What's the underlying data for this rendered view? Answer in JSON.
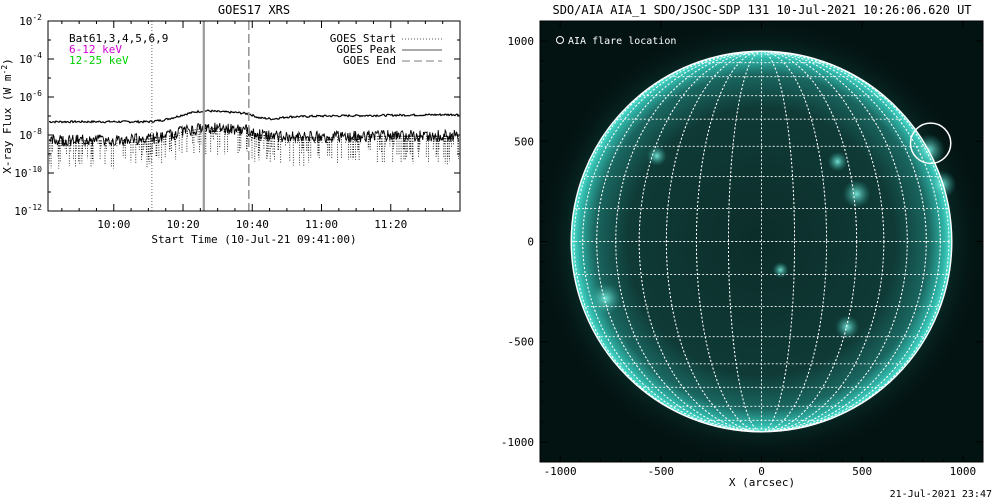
{
  "footer_timestamp": "21-Jul-2021 23:47",
  "chart_data": [
    {
      "type": "line",
      "title": "GOES17 XRS",
      "xlabel": "Start Time (10-Jul-21 09:41:00)",
      "ylabel": "X-ray Flux (W m",
      "ylabel_sup": "-2",
      "ylabel_end": ")",
      "y_scale": "log",
      "ylim": [
        1e-12,
        0.01
      ],
      "y_ticks": [
        {
          "value": 0.01,
          "base": "10",
          "exp": "-2"
        },
        {
          "value": 0.0001,
          "base": "10",
          "exp": "-4"
        },
        {
          "value": 1e-06,
          "base": "10",
          "exp": "-6"
        },
        {
          "value": 1e-08,
          "base": "10",
          "exp": "-8"
        },
        {
          "value": 1e-10,
          "base": "10",
          "exp": "-10"
        },
        {
          "value": 1e-12,
          "base": "10",
          "exp": "-12"
        }
      ],
      "x_range": [
        "09:41",
        "11:40"
      ],
      "x_ticks": [
        "10:00",
        "10:20",
        "10:40",
        "11:00",
        "11:20"
      ],
      "legend_left": [
        {
          "label": "Bat61,3,4,5,6,9",
          "color": "#000000"
        },
        {
          "label": "6-12 keV",
          "color": "#d400d4"
        },
        {
          "label": "12-25 keV",
          "color": "#00d000"
        }
      ],
      "legend_right_position": "top-right",
      "legend_right": [
        {
          "label": "GOES Start",
          "style": "dotted",
          "time": "10:11"
        },
        {
          "label": "GOES Peak",
          "style": "solid",
          "time": "10:26"
        },
        {
          "label": "GOES End",
          "style": "dashed",
          "time": "10:39"
        }
      ],
      "series": [
        {
          "style": "upper-channel",
          "x": [
            "09:41",
            "10:00",
            "10:10",
            "10:14",
            "10:18",
            "10:21",
            "10:24",
            "10:27",
            "10:30",
            "10:33",
            "10:36",
            "10:39",
            "10:42",
            "10:46",
            "10:50",
            "11:00",
            "11:20",
            "11:40"
          ],
          "y": [
            5e-08,
            5e-08,
            5e-08,
            6e-08,
            9e-08,
            1.3e-07,
            1.7e-07,
            1.9e-07,
            1.7e-07,
            1.6e-07,
            1.5e-07,
            1.3e-07,
            8e-08,
            7e-08,
            9e-08,
            1e-07,
            1.1e-07,
            1.2e-07
          ]
        },
        {
          "style": "lower-channel-noisy",
          "x": [
            "09:41",
            "10:00",
            "10:10",
            "10:16",
            "10:20",
            "10:24",
            "10:27",
            "10:30",
            "10:34",
            "10:38",
            "10:42",
            "10:50",
            "11:00",
            "11:20",
            "11:40"
          ],
          "y": [
            4e-09,
            4e-09,
            5e-09,
            7e-09,
            1.2e-08,
            1.6e-08,
            1.8e-08,
            1.7e-08,
            1.6e-08,
            1.4e-08,
            8e-09,
            6e-09,
            6e-09,
            7e-09,
            7e-09
          ]
        }
      ]
    },
    {
      "type": "image",
      "title": "SDO/AIA AIA_1 SDO/JSOC-SDP 131 10-Jul-2021 10:26:06.620 UT",
      "xlabel": "X (arcsec)",
      "xlim": [
        -1100,
        1100
      ],
      "ylim": [
        -1100,
        1100
      ],
      "x_ticks": [
        -1000,
        -500,
        0,
        500,
        1000
      ],
      "y_ticks": [
        1000,
        500,
        0,
        -500,
        -1000
      ],
      "legend_position": "top-left",
      "legend": "AIA flare location",
      "solar_radius_arcsec": 945,
      "flare_location": {
        "x": 840,
        "y": 490,
        "radius": 100
      },
      "grid_spacing_deg": 10
    }
  ]
}
